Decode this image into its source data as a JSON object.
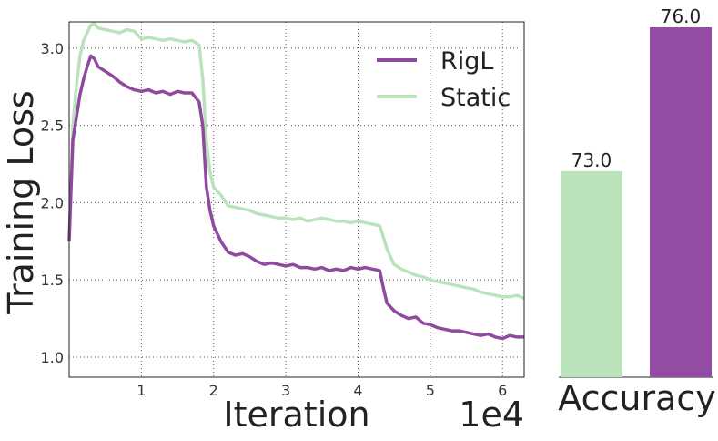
{
  "chart_data": [
    {
      "type": "line",
      "xlabel": "Iteration",
      "ylabel": "Training Loss",
      "x_offset_label": "1e4",
      "xlim": [
        0,
        6.3
      ],
      "ylim": [
        0.87,
        3.17
      ],
      "x_ticks": [
        1,
        2,
        3,
        4,
        5,
        6
      ],
      "y_ticks": [
        1.0,
        1.5,
        2.0,
        2.5,
        3.0
      ],
      "x_tick_labels": [
        "1",
        "2",
        "3",
        "4",
        "5",
        "6"
      ],
      "y_tick_labels": [
        "1.0",
        "1.5",
        "2.0",
        "2.5",
        "3.0"
      ],
      "grid": true,
      "legend_position": "top-right",
      "series": [
        {
          "name": "RigL",
          "color": "#8f4a9f",
          "x": [
            0,
            0.05,
            0.1,
            0.15,
            0.2,
            0.25,
            0.3,
            0.35,
            0.4,
            0.5,
            0.6,
            0.7,
            0.8,
            0.9,
            1.0,
            1.1,
            1.2,
            1.3,
            1.4,
            1.5,
            1.6,
            1.7,
            1.75,
            1.8,
            1.85,
            1.9,
            1.95,
            2.0,
            2.1,
            2.2,
            2.3,
            2.4,
            2.5,
            2.6,
            2.7,
            2.8,
            2.9,
            3.0,
            3.1,
            3.2,
            3.3,
            3.4,
            3.5,
            3.6,
            3.7,
            3.8,
            3.9,
            4.0,
            4.1,
            4.2,
            4.3,
            4.35,
            4.4,
            4.5,
            4.6,
            4.7,
            4.8,
            4.9,
            5.0,
            5.1,
            5.2,
            5.3,
            5.4,
            5.5,
            5.6,
            5.7,
            5.8,
            5.9,
            6.0,
            6.1,
            6.2,
            6.3
          ],
          "y": [
            1.75,
            2.4,
            2.55,
            2.7,
            2.8,
            2.88,
            2.95,
            2.93,
            2.88,
            2.85,
            2.82,
            2.78,
            2.75,
            2.73,
            2.72,
            2.73,
            2.71,
            2.72,
            2.7,
            2.72,
            2.71,
            2.71,
            2.68,
            2.65,
            2.5,
            2.1,
            1.95,
            1.85,
            1.75,
            1.68,
            1.66,
            1.67,
            1.65,
            1.62,
            1.6,
            1.61,
            1.6,
            1.59,
            1.6,
            1.58,
            1.58,
            1.57,
            1.58,
            1.56,
            1.57,
            1.56,
            1.58,
            1.57,
            1.58,
            1.57,
            1.56,
            1.45,
            1.35,
            1.3,
            1.27,
            1.25,
            1.26,
            1.22,
            1.21,
            1.19,
            1.18,
            1.17,
            1.17,
            1.16,
            1.15,
            1.14,
            1.15,
            1.13,
            1.12,
            1.14,
            1.13,
            1.13
          ]
        },
        {
          "name": "Static",
          "color": "#bbe3bb",
          "x": [
            0,
            0.05,
            0.1,
            0.15,
            0.2,
            0.25,
            0.3,
            0.35,
            0.4,
            0.5,
            0.6,
            0.7,
            0.8,
            0.9,
            1.0,
            1.1,
            1.2,
            1.3,
            1.4,
            1.5,
            1.6,
            1.7,
            1.8,
            1.85,
            1.9,
            1.95,
            2.0,
            2.1,
            2.2,
            2.3,
            2.4,
            2.5,
            2.6,
            2.7,
            2.8,
            2.9,
            3.0,
            3.1,
            3.2,
            3.3,
            3.4,
            3.5,
            3.6,
            3.7,
            3.8,
            3.9,
            4.0,
            4.1,
            4.2,
            4.3,
            4.35,
            4.4,
            4.5,
            4.6,
            4.7,
            4.8,
            4.9,
            5.0,
            5.1,
            5.2,
            5.3,
            5.4,
            5.5,
            5.6,
            5.7,
            5.8,
            5.9,
            6.0,
            6.1,
            6.2,
            6.3
          ],
          "y": [
            1.75,
            2.5,
            2.75,
            2.95,
            3.05,
            3.1,
            3.15,
            3.16,
            3.13,
            3.12,
            3.11,
            3.1,
            3.12,
            3.11,
            3.06,
            3.07,
            3.06,
            3.05,
            3.06,
            3.05,
            3.04,
            3.05,
            3.02,
            2.8,
            2.4,
            2.2,
            2.1,
            2.05,
            1.98,
            1.97,
            1.96,
            1.95,
            1.93,
            1.92,
            1.91,
            1.9,
            1.9,
            1.89,
            1.9,
            1.88,
            1.89,
            1.9,
            1.89,
            1.88,
            1.88,
            1.87,
            1.88,
            1.87,
            1.86,
            1.85,
            1.78,
            1.7,
            1.6,
            1.57,
            1.55,
            1.53,
            1.52,
            1.5,
            1.49,
            1.48,
            1.47,
            1.46,
            1.45,
            1.44,
            1.42,
            1.41,
            1.4,
            1.39,
            1.39,
            1.4,
            1.38
          ]
        }
      ]
    },
    {
      "type": "bar",
      "xlabel": "Accuracy",
      "categories": [
        "Static",
        "RigL"
      ],
      "values": [
        73.0,
        76.0
      ],
      "value_labels": [
        "73.0",
        "76.0"
      ],
      "colors": [
        "#bbe3bb",
        "#944da4"
      ],
      "ylim": [
        68.7,
        76.0
      ]
    }
  ]
}
